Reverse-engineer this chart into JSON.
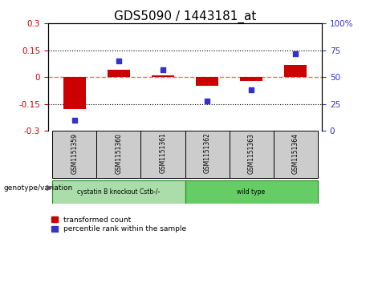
{
  "title": "GDS5090 / 1443181_at",
  "samples": [
    "GSM1151359",
    "GSM1151360",
    "GSM1151361",
    "GSM1151362",
    "GSM1151363",
    "GSM1151364"
  ],
  "red_bars": [
    -0.18,
    0.04,
    0.01,
    -0.05,
    -0.02,
    0.07
  ],
  "blue_dots": [
    10,
    65,
    57,
    28,
    38,
    72
  ],
  "ylim_left": [
    -0.3,
    0.3
  ],
  "ylim_right": [
    0,
    100
  ],
  "yticks_left": [
    -0.3,
    -0.15,
    0.0,
    0.15,
    0.3
  ],
  "yticks_right": [
    0,
    25,
    50,
    75,
    100
  ],
  "groups": [
    {
      "label": "cystatin B knockout Cstb-/-",
      "start": 0,
      "end": 2,
      "color": "#aaddaa"
    },
    {
      "label": "wild type",
      "start": 3,
      "end": 5,
      "color": "#66cc66"
    }
  ],
  "genotype_label": "genotype/variation",
  "legend_red": "transformed count",
  "legend_blue": "percentile rank within the sample",
  "red_color": "#CC0000",
  "blue_color": "#3333CC",
  "bar_width": 0.5,
  "zero_line_color": "#FF6666",
  "dotted_line_color": "#000000",
  "sample_box_color": "#CCCCCC",
  "title_fontsize": 11
}
